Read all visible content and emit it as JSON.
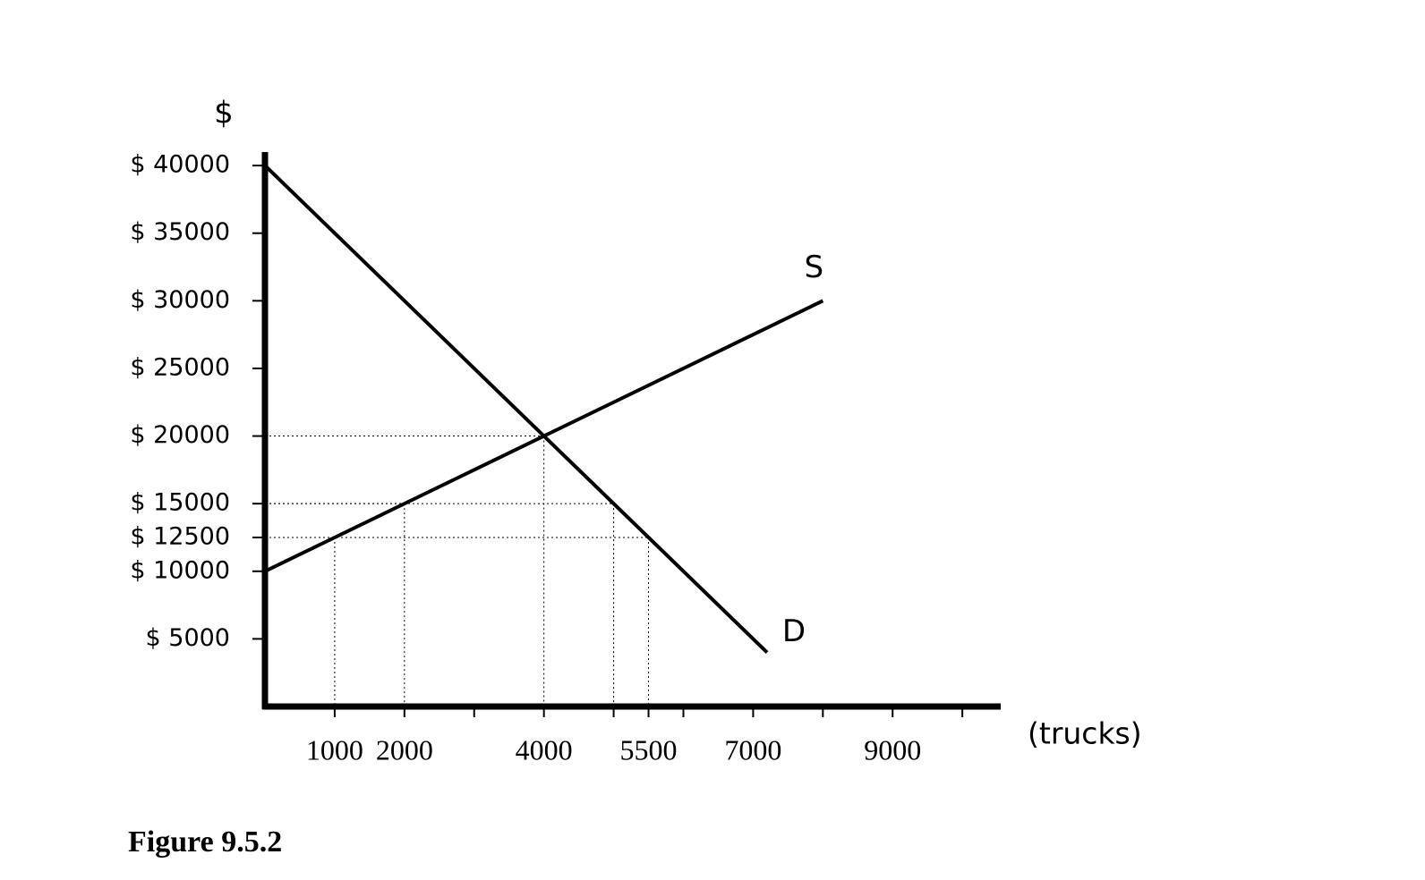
{
  "chart_data": {
    "type": "line",
    "y_label": "$",
    "x_label": "(trucks)",
    "caption": "Figure 9.5.2",
    "xlim": [
      0,
      10550
    ],
    "ylim": [
      0,
      41000
    ],
    "xticks": [
      1000,
      2000,
      4000,
      5500,
      7000,
      9000
    ],
    "x_minor_ticks": [
      3000,
      5000,
      6000,
      8000,
      10000
    ],
    "yticks": [
      {
        "value": 5000,
        "label": "$ 5000"
      },
      {
        "value": 10000,
        "label": "$ 10000"
      },
      {
        "value": 12500,
        "label": "$ 12500"
      },
      {
        "value": 15000,
        "label": "$ 15000"
      },
      {
        "value": 20000,
        "label": "$ 20000"
      },
      {
        "value": 25000,
        "label": "$ 25000"
      },
      {
        "value": 30000,
        "label": "$ 30000"
      },
      {
        "value": 35000,
        "label": "$ 35000"
      },
      {
        "value": 40000,
        "label": "$ 40000"
      }
    ],
    "series": [
      {
        "name": "D",
        "color": "#000000",
        "x": [
          0,
          7200
        ],
        "values": [
          40000,
          4000
        ]
      },
      {
        "name": "S",
        "color": "#000000",
        "x": [
          0,
          8000
        ],
        "values": [
          10000,
          30000
        ]
      }
    ],
    "guides": {
      "x": [
        1000,
        2000,
        4000,
        5000,
        5500
      ],
      "y": [
        12500,
        15000,
        20000,
        15000,
        12500
      ]
    }
  }
}
